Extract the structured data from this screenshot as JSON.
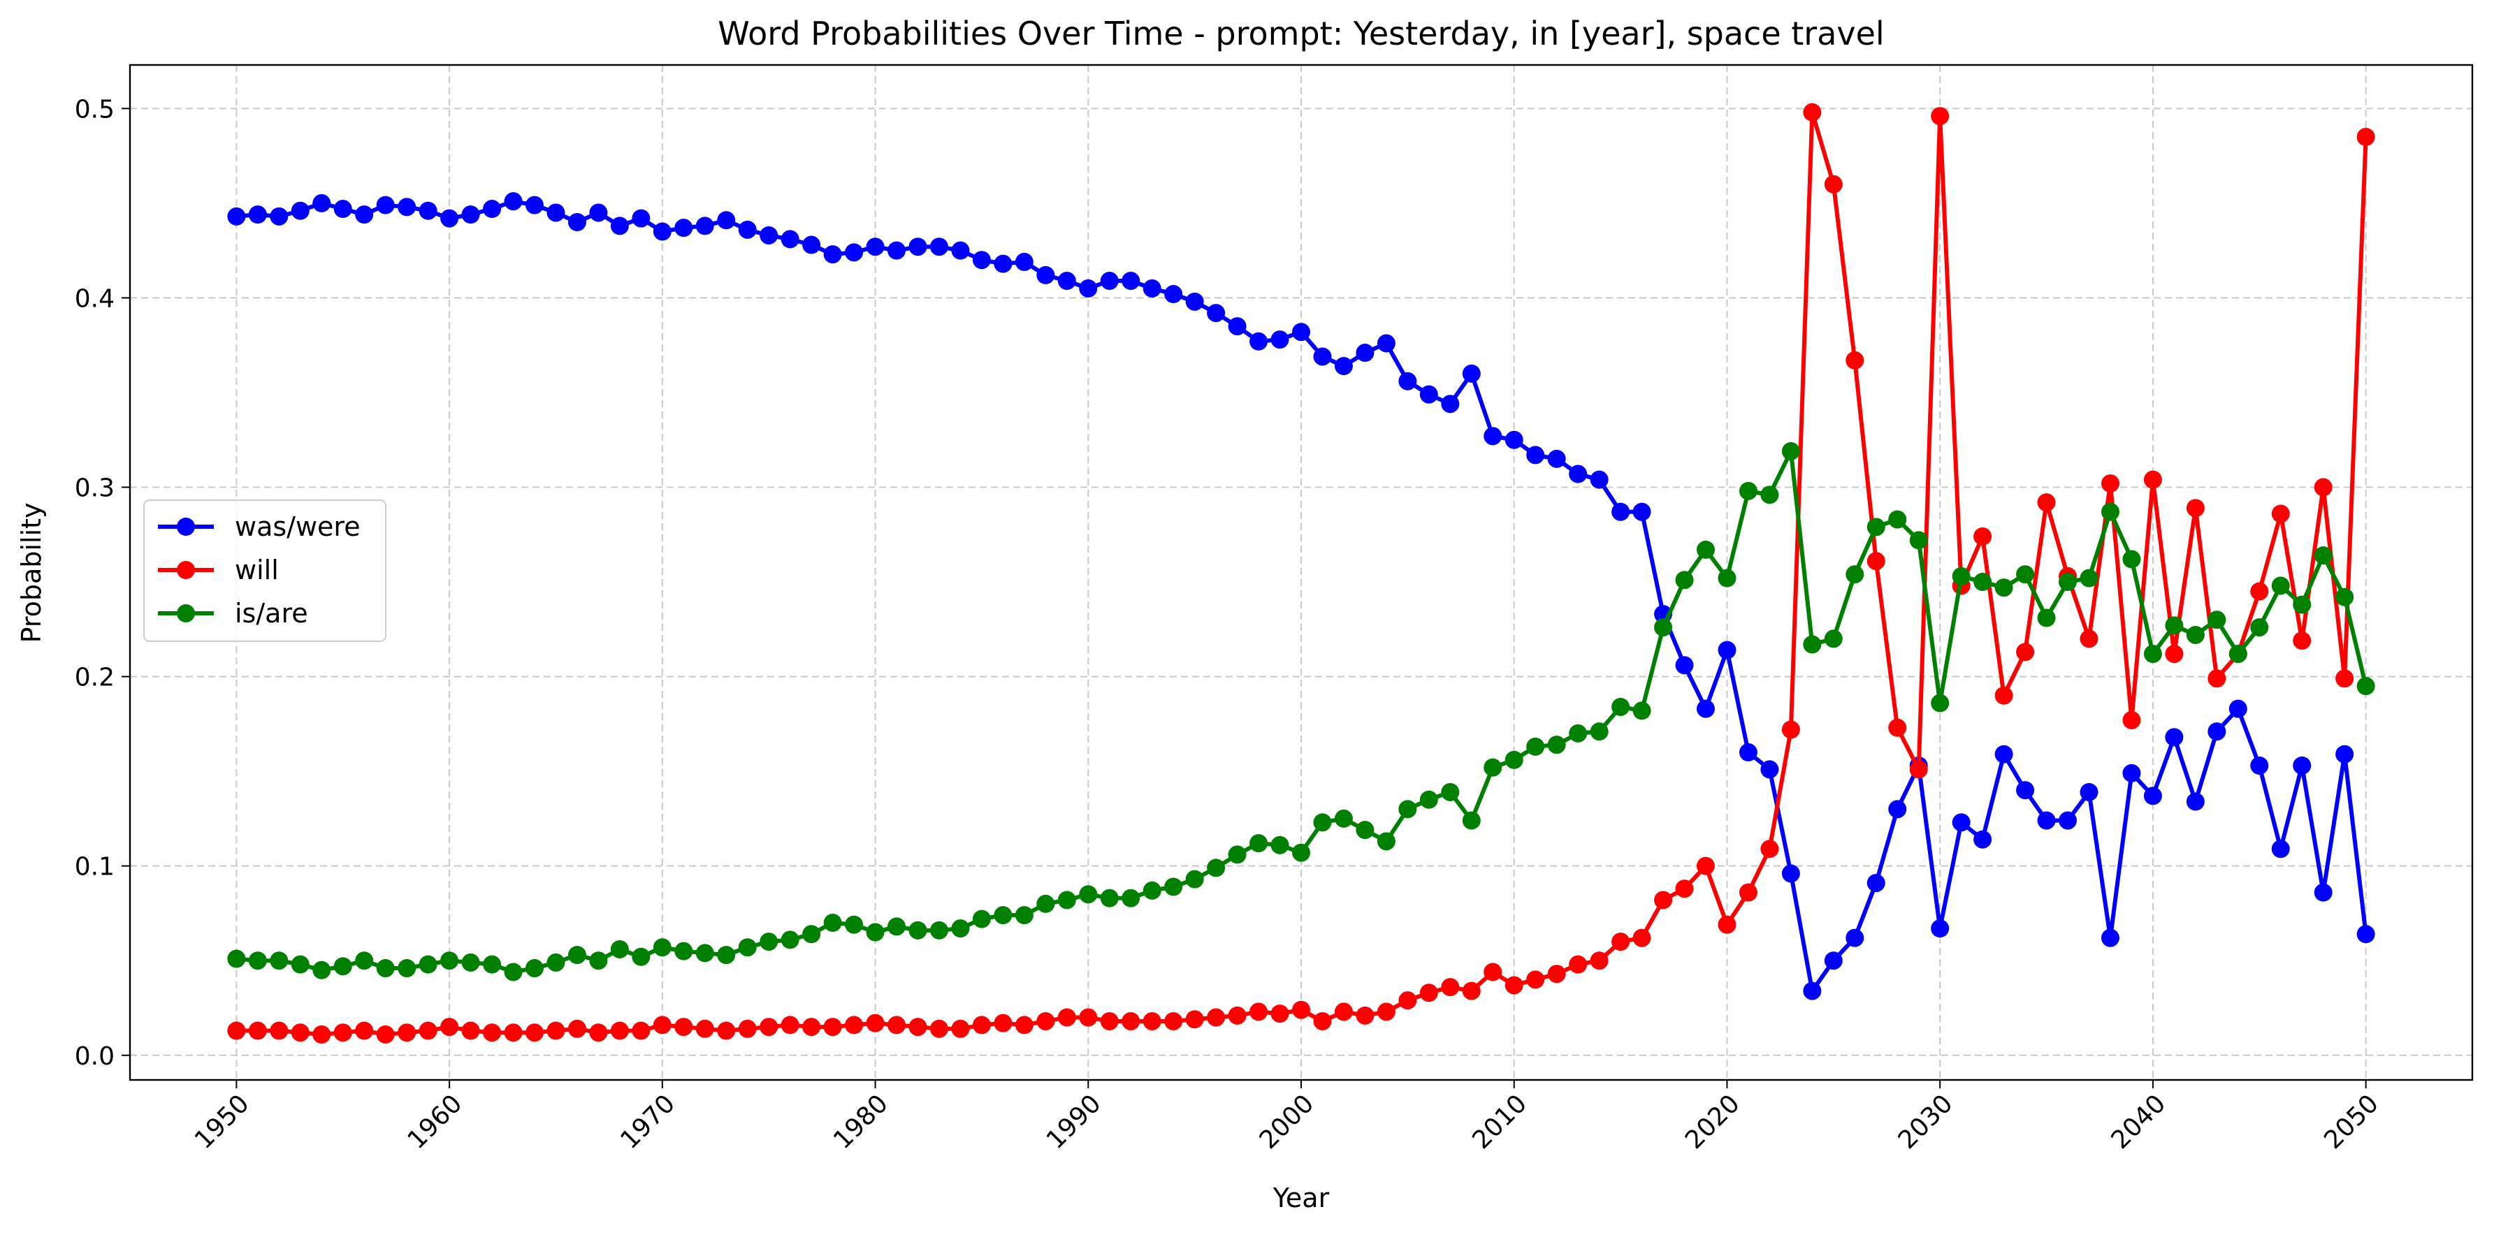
{
  "chart_data": {
    "type": "line",
    "title": "Word Probabilities Over Time - prompt: Yesterday, in [year], space travel",
    "xlabel": "Year",
    "ylabel": "Probability",
    "xlim": [
      1945,
      2055
    ],
    "ylim": [
      -0.013,
      0.523
    ],
    "xticks": [
      1950,
      1960,
      1970,
      1980,
      1990,
      2000,
      2010,
      2020,
      2030,
      2040,
      2050
    ],
    "yticks": [
      "0.0",
      "0.1",
      "0.2",
      "0.3",
      "0.4",
      "0.5"
    ],
    "grid": true,
    "legend_position": "center-left",
    "x_start": 1950,
    "series": [
      {
        "name": "was/were",
        "color": "#0000ff",
        "values": [
          0.443,
          0.444,
          0.443,
          0.446,
          0.45,
          0.447,
          0.444,
          0.449,
          0.448,
          0.446,
          0.442,
          0.444,
          0.447,
          0.451,
          0.449,
          0.445,
          0.44,
          0.445,
          0.438,
          0.442,
          0.435,
          0.437,
          0.438,
          0.441,
          0.436,
          0.433,
          0.431,
          0.428,
          0.423,
          0.424,
          0.427,
          0.425,
          0.427,
          0.427,
          0.425,
          0.42,
          0.418,
          0.419,
          0.412,
          0.409,
          0.405,
          0.409,
          0.409,
          0.405,
          0.402,
          0.398,
          0.392,
          0.385,
          0.377,
          0.378,
          0.382,
          0.369,
          0.364,
          0.371,
          0.376,
          0.356,
          0.349,
          0.344,
          0.36,
          0.327,
          0.325,
          0.317,
          0.315,
          0.307,
          0.304,
          0.287,
          0.287,
          0.233,
          0.206,
          0.183,
          0.214,
          0.16,
          0.151,
          0.096,
          0.034,
          0.05,
          0.062,
          0.091,
          0.13,
          0.153,
          0.067,
          0.123,
          0.114,
          0.159,
          0.14,
          0.124,
          0.124,
          0.139,
          0.062,
          0.149,
          0.137,
          0.168,
          0.134,
          0.171,
          0.183,
          0.153,
          0.109,
          0.153,
          0.086,
          0.159,
          0.064
        ]
      },
      {
        "name": "will",
        "color": "#ff0000",
        "values": [
          0.013,
          0.013,
          0.013,
          0.012,
          0.011,
          0.012,
          0.013,
          0.011,
          0.012,
          0.013,
          0.015,
          0.013,
          0.012,
          0.012,
          0.012,
          0.013,
          0.014,
          0.012,
          0.013,
          0.013,
          0.016,
          0.015,
          0.014,
          0.013,
          0.014,
          0.015,
          0.016,
          0.015,
          0.015,
          0.016,
          0.017,
          0.016,
          0.015,
          0.014,
          0.014,
          0.016,
          0.017,
          0.016,
          0.018,
          0.02,
          0.02,
          0.018,
          0.018,
          0.018,
          0.018,
          0.019,
          0.02,
          0.021,
          0.023,
          0.022,
          0.024,
          0.018,
          0.023,
          0.021,
          0.023,
          0.029,
          0.033,
          0.036,
          0.034,
          0.044,
          0.037,
          0.04,
          0.043,
          0.048,
          0.05,
          0.06,
          0.062,
          0.082,
          0.088,
          0.1,
          0.069,
          0.086,
          0.109,
          0.172,
          0.498,
          0.46,
          0.367,
          0.261,
          0.173,
          0.151,
          0.496,
          0.248,
          0.274,
          0.19,
          0.213,
          0.292,
          0.253,
          0.22,
          0.302,
          0.177,
          0.304,
          0.212,
          0.289,
          0.199,
          0.212,
          0.245,
          0.286,
          0.219,
          0.3,
          0.199,
          0.485
        ]
      },
      {
        "name": "is/are",
        "color": "#008000",
        "values": [
          0.051,
          0.05,
          0.05,
          0.048,
          0.045,
          0.047,
          0.05,
          0.046,
          0.046,
          0.048,
          0.05,
          0.049,
          0.048,
          0.044,
          0.046,
          0.049,
          0.053,
          0.05,
          0.056,
          0.052,
          0.057,
          0.055,
          0.054,
          0.053,
          0.057,
          0.06,
          0.061,
          0.064,
          0.07,
          0.069,
          0.065,
          0.068,
          0.066,
          0.066,
          0.067,
          0.072,
          0.074,
          0.074,
          0.08,
          0.082,
          0.085,
          0.083,
          0.083,
          0.087,
          0.089,
          0.093,
          0.099,
          0.106,
          0.112,
          0.111,
          0.107,
          0.123,
          0.125,
          0.119,
          0.113,
          0.13,
          0.135,
          0.139,
          0.124,
          0.152,
          0.156,
          0.163,
          0.164,
          0.17,
          0.171,
          0.184,
          0.182,
          0.226,
          0.251,
          0.267,
          0.252,
          0.298,
          0.296,
          0.319,
          0.217,
          0.22,
          0.254,
          0.279,
          0.283,
          0.272,
          0.186,
          0.253,
          0.25,
          0.247,
          0.254,
          0.231,
          0.25,
          0.252,
          0.287,
          0.262,
          0.212,
          0.227,
          0.222,
          0.23,
          0.212,
          0.226,
          0.248,
          0.238,
          0.264,
          0.242,
          0.195
        ]
      }
    ]
  }
}
